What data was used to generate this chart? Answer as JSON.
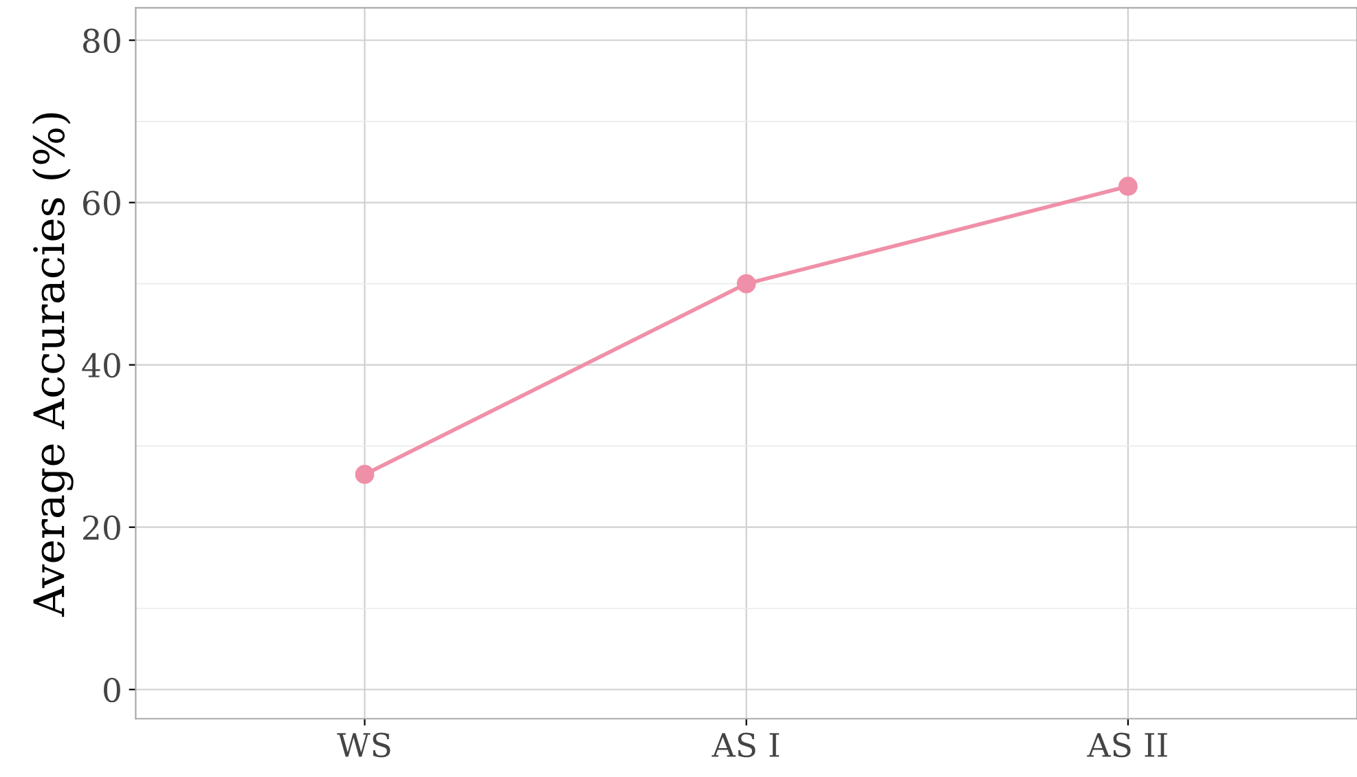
{
  "chart_data": {
    "type": "line",
    "ylabel": "Average Accuracies (%)",
    "categories": [
      "WS",
      "AS I",
      "AS II"
    ],
    "series": [
      {
        "color": "#f08fa8",
        "values": [
          26.5,
          50,
          62
        ]
      }
    ],
    "ylim": [
      -3.6,
      84
    ],
    "yticks": [
      0,
      {
        "value": 10,
        "label": null
      },
      20,
      {
        "value": 30,
        "label": null
      },
      40,
      {
        "value": 50,
        "label": null
      },
      60,
      {
        "value": 70,
        "label": null
      },
      80
    ],
    "grid": true,
    "marker": "circle",
    "line_style": "solid"
  }
}
